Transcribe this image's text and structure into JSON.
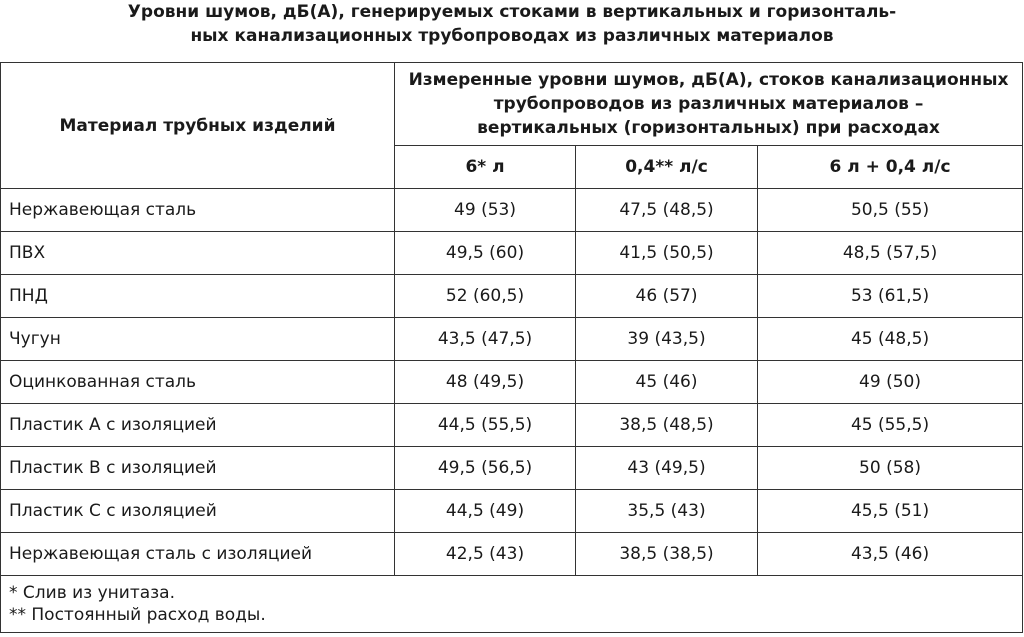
{
  "document": {
    "title_line1": "Уровни шумов, дБ(А), генерируемых стоками в вертикальных и горизонталь-",
    "title_line2": "ных канализационных трубопроводах из различных материалов",
    "table": {
      "header_material": "Материал трубных изделий",
      "header_levels_line1": "Измеренные уровни шумов, дБ(А), стоков канализационных",
      "header_levels_line2": "трубопроводов из различных материалов –",
      "header_levels_line3": "вертикальных (горизонтальных) при расходах",
      "subheaders": [
        "6* л",
        "0,4** л/с",
        "6 л + 0,4 л/с"
      ],
      "rows": [
        {
          "material": "Нержавеющая сталь",
          "v1": "49 (53)",
          "v2": "47,5 (48,5)",
          "v3": "50,5 (55)"
        },
        {
          "material": "ПВХ",
          "v1": "49,5 (60)",
          "v2": "41,5 (50,5)",
          "v3": "48,5 (57,5)"
        },
        {
          "material": "ПНД",
          "v1": "52 (60,5)",
          "v2": "46 (57)",
          "v3": "53 (61,5)"
        },
        {
          "material": "Чугун",
          "v1": "43,5 (47,5)",
          "v2": "39 (43,5)",
          "v3": "45 (48,5)"
        },
        {
          "material": "Оцинкованная сталь",
          "v1": "48 (49,5)",
          "v2": "45 (46)",
          "v3": "49 (50)"
        },
        {
          "material": "Пластик A с изоляцией",
          "v1": "44,5 (55,5)",
          "v2": "38,5 (48,5)",
          "v3": "45 (55,5)"
        },
        {
          "material": "Пластик B с изоляцией",
          "v1": "49,5 (56,5)",
          "v2": "43 (49,5)",
          "v3": "50 (58)"
        },
        {
          "material": "Пластик C с изоляцией",
          "v1": "44,5 (49)",
          "v2": "35,5 (43)",
          "v3": "45,5 (51)"
        },
        {
          "material": "Нержавеющая сталь с изоляцией",
          "v1": "42,5 (43)",
          "v2": "38,5 (38,5)",
          "v3": "43,5 (46)"
        }
      ],
      "note1": "* Слив из унитаза.",
      "note2": "** Постоянный расход воды."
    }
  }
}
